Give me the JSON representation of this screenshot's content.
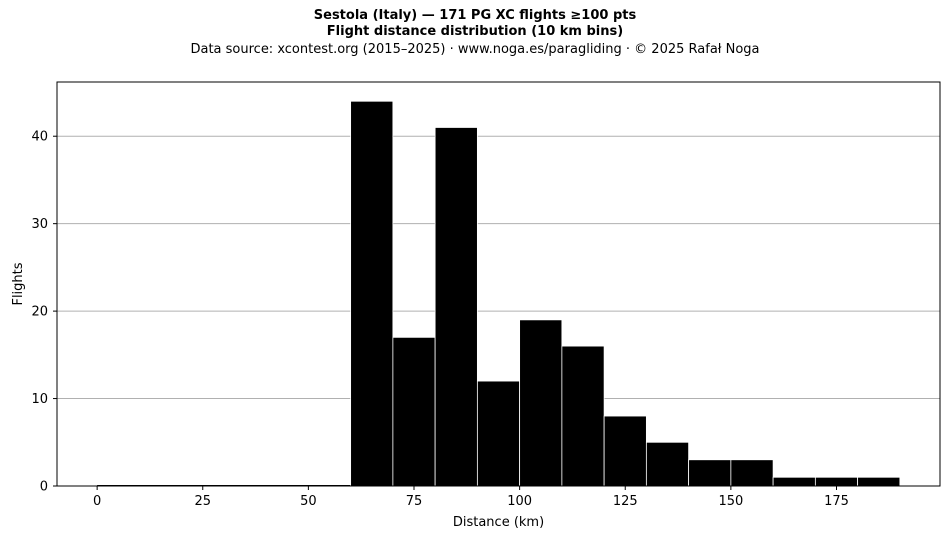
{
  "chart_data": {
    "type": "bar",
    "title": "Sestola (Italy)  —  171 PG XC flights ≥100 pts",
    "subtitle": "Flight distance distribution (10 km bins)",
    "source": "Data source: xcontest.org (2015–2025)  ·  www.noga.es/paragliding  ·  © 2025 Rafał Noga",
    "xlabel": "Distance (km)",
    "ylabel": "Flights",
    "bin_width": 10,
    "bins": [
      {
        "start": 60,
        "end": 70,
        "count": 44
      },
      {
        "start": 70,
        "end": 80,
        "count": 17
      },
      {
        "start": 80,
        "end": 90,
        "count": 41
      },
      {
        "start": 90,
        "end": 100,
        "count": 12
      },
      {
        "start": 100,
        "end": 110,
        "count": 19
      },
      {
        "start": 110,
        "end": 120,
        "count": 16
      },
      {
        "start": 120,
        "end": 130,
        "count": 8
      },
      {
        "start": 130,
        "end": 140,
        "count": 5
      },
      {
        "start": 140,
        "end": 150,
        "count": 3
      },
      {
        "start": 150,
        "end": 160,
        "count": 3
      },
      {
        "start": 160,
        "end": 170,
        "count": 1
      },
      {
        "start": 170,
        "end": 180,
        "count": 1
      },
      {
        "start": 180,
        "end": 190,
        "count": 1
      }
    ],
    "xlim": [
      -9.5,
      199.5
    ],
    "ylim": [
      0,
      46.2
    ],
    "xticks": [
      0,
      25,
      50,
      75,
      100,
      125,
      150,
      175
    ],
    "yticks": [
      0,
      10,
      20,
      30,
      40
    ],
    "grid": "horizontal",
    "bar_color": "#000000",
    "edge_color": "#ffffff",
    "grid_color": "#b0b0b0"
  }
}
